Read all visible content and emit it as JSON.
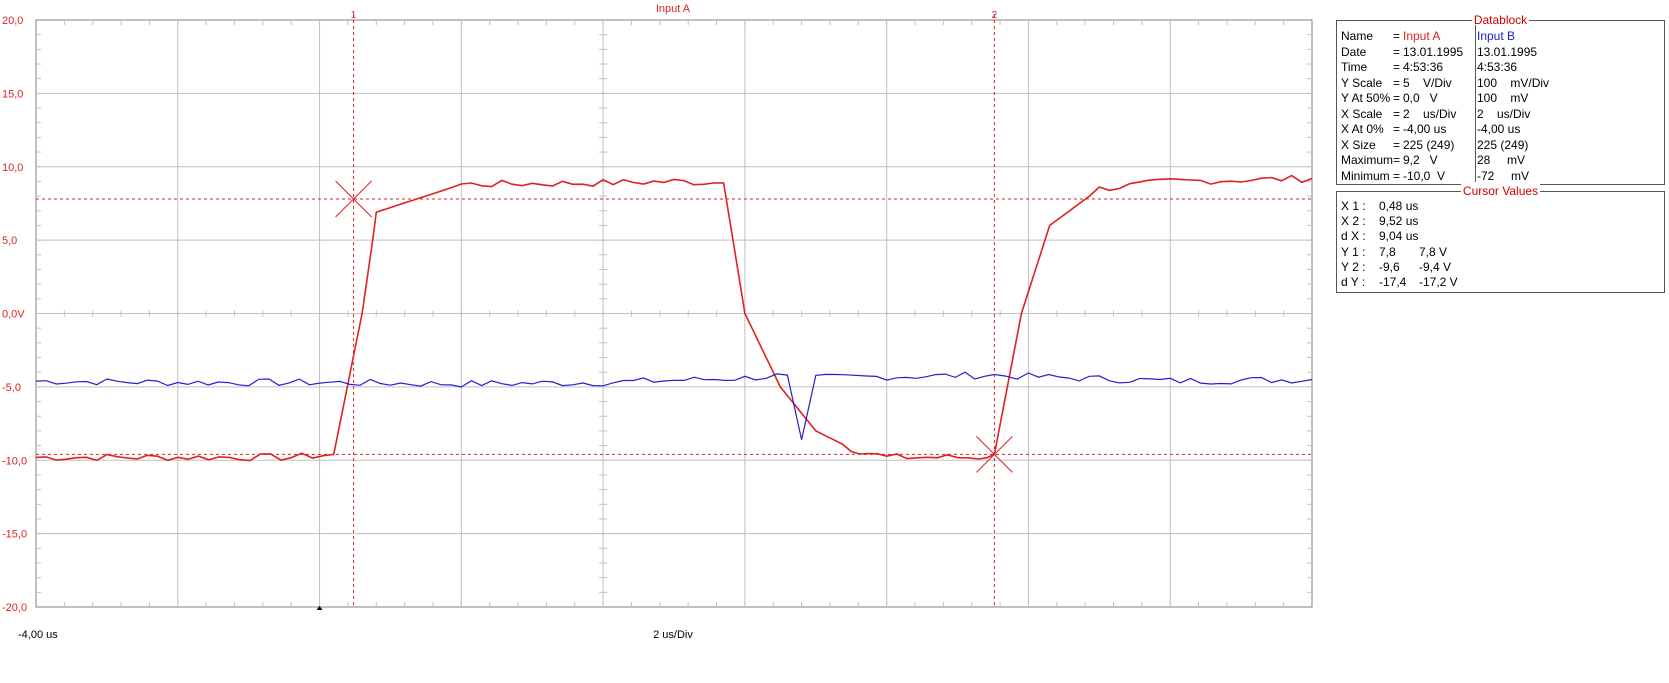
{
  "chart_data": {
    "type": "line",
    "title": "Input A",
    "xlabel": "2 us/Div",
    "x_start_label": "-4,00 us",
    "xlim": [
      -4.0,
      14.0
    ],
    "ylim": [
      -20,
      20
    ],
    "y_tick_labels": [
      "20,0",
      "15,0",
      "10,0",
      "5,0",
      "0,0V",
      "-5,0",
      "-10,0",
      "-15,0",
      "-20,0"
    ],
    "grid": true,
    "series": [
      {
        "name": "Input A",
        "color": "#dd2222",
        "x": [
          -4.0,
          -2.0,
          -0.4,
          0.2,
          0.6,
          0.75,
          0.8,
          2.0,
          4.0,
          5.0,
          5.7,
          6.0,
          6.5,
          7.0,
          7.5,
          8.0,
          9.0,
          9.3,
          9.52,
          9.9,
          10.3,
          11.0,
          12.0,
          14.0
        ],
        "y": [
          -9.8,
          -9.8,
          -9.8,
          -9.6,
          0.0,
          5.0,
          6.9,
          8.8,
          8.9,
          9.0,
          8.9,
          0.0,
          -5.0,
          -8.0,
          -9.2,
          -9.8,
          -9.8,
          -9.8,
          -9.6,
          0.0,
          6.0,
          8.5,
          9.0,
          9.2
        ]
      },
      {
        "name": "Input B",
        "color": "#2222cc",
        "x": [
          -4.0,
          -2.0,
          0.0,
          2.0,
          4.0,
          6.0,
          6.6,
          6.8,
          7.0,
          8.0,
          9.52,
          10.0,
          12.0,
          14.0
        ],
        "y": [
          -4.6,
          -4.7,
          -4.7,
          -4.8,
          -4.7,
          -4.4,
          -4.2,
          -8.6,
          -4.4,
          -4.3,
          -4.2,
          -4.3,
          -4.6,
          -4.5
        ]
      }
    ],
    "cursors": {
      "x1_us": 0.48,
      "x2_us": 9.52,
      "y1_v": 7.8,
      "y2_v": -9.6,
      "x1_label": "1",
      "x2_label": "2"
    },
    "marker_x_us": 0.0
  },
  "datablock": {
    "title": "Datablock",
    "rows": [
      {
        "label": "Name",
        "eq": "=",
        "a": "Input A",
        "b": "Input B"
      },
      {
        "label": "Date",
        "eq": "=",
        "a": "13.01.1995",
        "b": "13.01.1995"
      },
      {
        "label": "Time",
        "eq": "=",
        "a": "4:53:36",
        "b": "4:53:36"
      },
      {
        "label": "Y Scale",
        "eq": "=",
        "a": "5    V/Div",
        "b": "100    mV/Div"
      },
      {
        "label": "Y At 50%",
        "eq": "=",
        "a": "0,0   V",
        "b": "100    mV"
      },
      {
        "label": "X Scale",
        "eq": "=",
        "a": "2    us/Div",
        "b": "2    us/Div"
      },
      {
        "label": "X At 0%",
        "eq": "=",
        "a": "-4,00 us",
        "b": "-4,00 us"
      },
      {
        "label": "X Size",
        "eq": "=",
        "a": "225 (249)",
        "b": "225 (249)"
      },
      {
        "label": "Maximum",
        "eq": "=",
        "a": "9,2   V",
        "b": "28     mV"
      },
      {
        "label": "Minimum",
        "eq": "=",
        "a": "-10,0  V",
        "b": "-72     mV"
      }
    ]
  },
  "cursor_values": {
    "title": "Cursor Values",
    "rows": [
      {
        "label": "X 1 :",
        "v1": "0,48 us",
        "v2": ""
      },
      {
        "label": "X 2 :",
        "v1": "9,52 us",
        "v2": ""
      },
      {
        "label": "d X :",
        "v1": "9,04 us",
        "v2": ""
      },
      {
        "label": "Y 1 :",
        "v1": "7,8",
        "v2": "7,8 V"
      },
      {
        "label": "Y 2 :",
        "v1": "-9,6",
        "v2": "-9,4 V"
      },
      {
        "label": "d Y :",
        "v1": "-17,4",
        "v2": "-17,2 V"
      }
    ]
  },
  "colors": {
    "input_a": "#dd2222",
    "input_b": "#2222cc",
    "grid": "#c0c0c0",
    "cursor": "#dd2222",
    "panel_title": "#cc0000"
  }
}
